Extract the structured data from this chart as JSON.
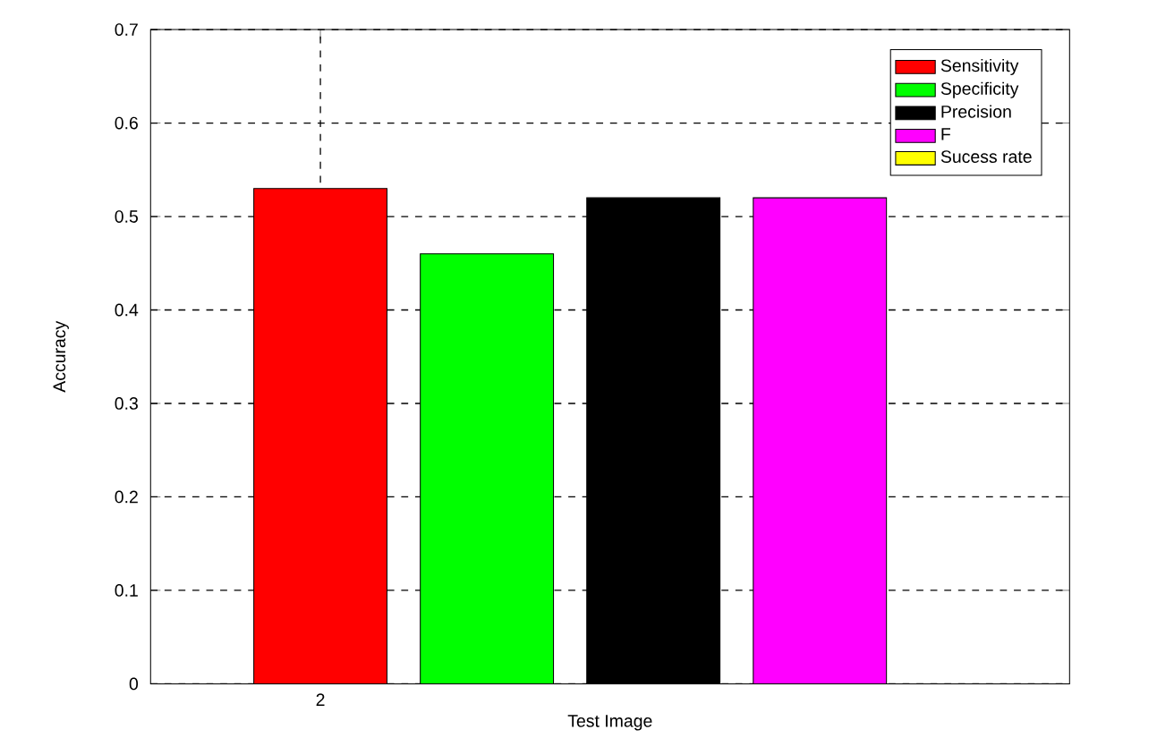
{
  "chart_data": {
    "type": "bar",
    "xlabel": "Test Image",
    "ylabel": "Accuracy",
    "categories": [
      "2",
      null,
      null,
      null,
      null
    ],
    "series": [
      {
        "name": "Sensitivity",
        "color": "#ff0000",
        "values": [
          0.53,
          null,
          null,
          null,
          null
        ]
      },
      {
        "name": "Specificity",
        "color": "#00ff00",
        "values": [
          null,
          0.46,
          null,
          null,
          null
        ]
      },
      {
        "name": "Precision",
        "color": "#000000",
        "values": [
          null,
          null,
          0.52,
          null,
          null
        ]
      },
      {
        "name": "F",
        "color": "#ff00ff",
        "values": [
          null,
          null,
          null,
          0.52,
          null
        ]
      },
      {
        "name": "Sucess rate",
        "color": "#ffff00",
        "values": [
          null,
          null,
          null,
          null,
          null
        ]
      }
    ],
    "ylim": [
      0,
      0.7
    ],
    "yticks": [
      0,
      0.1,
      0.2,
      0.3,
      0.4,
      0.5,
      0.6,
      0.7
    ],
    "grid": true,
    "legend": "top right"
  }
}
